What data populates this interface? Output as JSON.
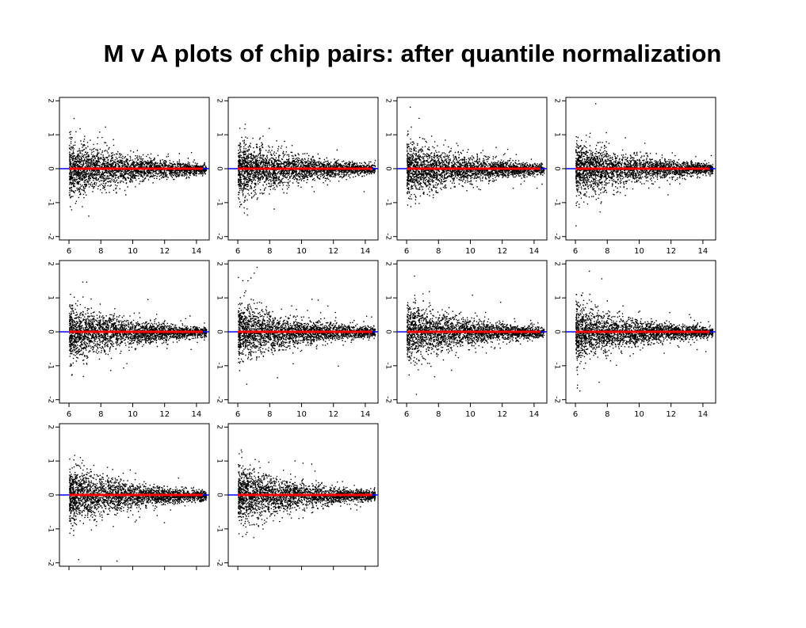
{
  "title": "M v A plots of chip pairs: after quantile normalization",
  "colors": {
    "points": "#000000",
    "loess": "#ff0000",
    "zero_line": "#0000ff",
    "frame": "#000000"
  },
  "chart_data": [
    {
      "type": "scatter",
      "x_ticks": [
        "6",
        "8",
        "10",
        "12",
        "14"
      ],
      "y_ticks": [
        "2",
        "1",
        "0",
        "-1",
        "-2"
      ],
      "xlim": [
        5.4,
        14.8
      ],
      "ylim": [
        -2.1,
        2.1
      ],
      "grid": false,
      "reference_line_y": 0
    },
    {
      "type": "scatter",
      "x_ticks": [
        "6",
        "8",
        "10",
        "12",
        "14"
      ],
      "y_ticks": [
        "2",
        "1",
        "0",
        "-1",
        "-2"
      ],
      "xlim": [
        5.4,
        14.8
      ],
      "ylim": [
        -2.1,
        2.1
      ],
      "grid": false,
      "reference_line_y": 0
    },
    {
      "type": "scatter",
      "x_ticks": [
        "6",
        "8",
        "10",
        "12",
        "14"
      ],
      "y_ticks": [
        "2",
        "1",
        "0",
        "-1",
        "-2"
      ],
      "xlim": [
        5.4,
        14.8
      ],
      "ylim": [
        -2.1,
        2.1
      ],
      "grid": false,
      "reference_line_y": 0
    },
    {
      "type": "scatter",
      "x_ticks": [
        "6",
        "8",
        "10",
        "12",
        "14"
      ],
      "y_ticks": [
        "2",
        "1",
        "0",
        "-1",
        "-2"
      ],
      "xlim": [
        5.4,
        14.8
      ],
      "ylim": [
        -2.1,
        2.1
      ],
      "grid": false,
      "reference_line_y": 0
    },
    {
      "type": "scatter",
      "x_ticks": [
        "6",
        "8",
        "10",
        "12",
        "14"
      ],
      "y_ticks": [
        "2",
        "1",
        "0",
        "-1",
        "-2"
      ],
      "xlim": [
        5.4,
        14.8
      ],
      "ylim": [
        -2.1,
        2.1
      ],
      "grid": false,
      "reference_line_y": 0
    },
    {
      "type": "scatter",
      "x_ticks": [
        "6",
        "8",
        "10",
        "12",
        "14"
      ],
      "y_ticks": [
        "2",
        "1",
        "0",
        "-1",
        "-2"
      ],
      "xlim": [
        5.4,
        14.8
      ],
      "ylim": [
        -2.1,
        2.1
      ],
      "grid": false,
      "reference_line_y": 0
    },
    {
      "type": "scatter",
      "x_ticks": [
        "6",
        "8",
        "10",
        "12",
        "14"
      ],
      "y_ticks": [
        "2",
        "1",
        "0",
        "-1",
        "-2"
      ],
      "xlim": [
        5.4,
        14.8
      ],
      "ylim": [
        -2.1,
        2.1
      ],
      "grid": false,
      "reference_line_y": 0
    },
    {
      "type": "scatter",
      "x_ticks": [
        "6",
        "8",
        "10",
        "12",
        "14"
      ],
      "y_ticks": [
        "2",
        "1",
        "0",
        "-1",
        "-2"
      ],
      "xlim": [
        5.4,
        14.8
      ],
      "ylim": [
        -2.1,
        2.1
      ],
      "grid": false,
      "reference_line_y": 0
    },
    {
      "type": "scatter",
      "x_ticks": [
        "",
        "",
        "",
        "",
        ""
      ],
      "y_ticks": [
        "2",
        "1",
        "0",
        "-1",
        "-2"
      ],
      "xlim": [
        5.4,
        14.8
      ],
      "ylim": [
        -2.1,
        2.1
      ],
      "grid": false,
      "reference_line_y": 0
    },
    {
      "type": "scatter",
      "x_ticks": [
        "",
        "",
        "",
        "",
        ""
      ],
      "y_ticks": [
        "2",
        "1",
        "0",
        "-1",
        "-2"
      ],
      "xlim": [
        5.4,
        14.8
      ],
      "ylim": [
        -2.1,
        2.1
      ],
      "grid": false,
      "reference_line_y": 0
    }
  ]
}
